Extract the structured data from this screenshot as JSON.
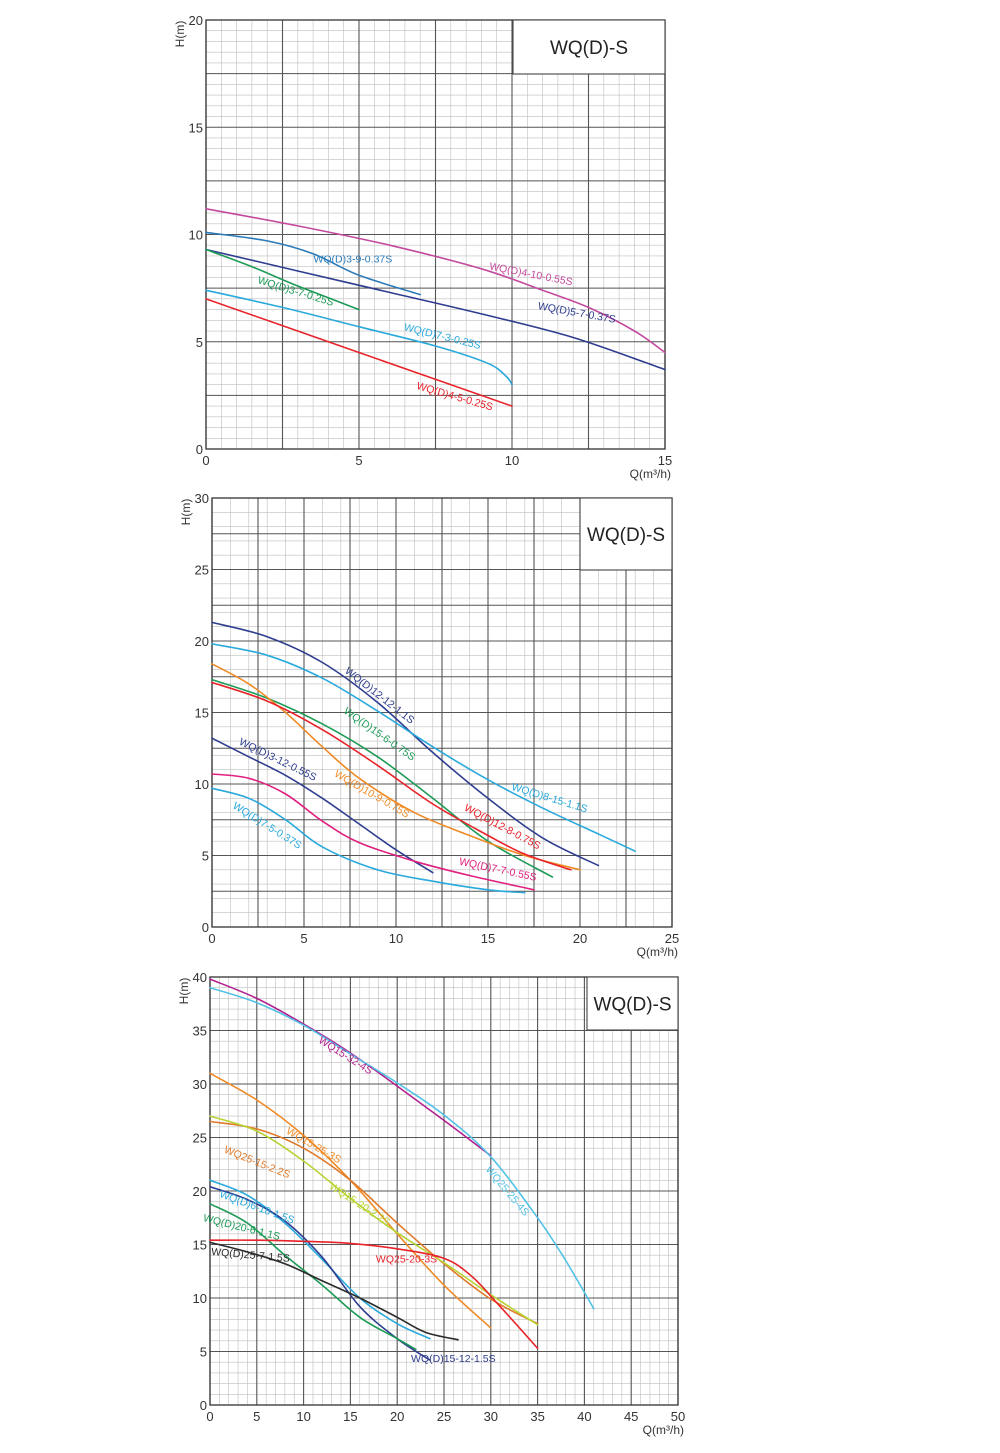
{
  "chart_data": [
    {
      "type": "line",
      "title": "WQ(D)-S",
      "xlabel": "Q(m³/h)",
      "ylabel": "H(m)",
      "xlim": [
        0,
        15
      ],
      "ylim": [
        0,
        20
      ],
      "xticks": [
        0,
        5,
        10,
        15
      ],
      "yticks": [
        0,
        5,
        10,
        15,
        20
      ],
      "grid": true,
      "series": [
        {
          "name": "WQ(D)4-10-0.55S",
          "color": "#c44a9e",
          "x": [
            0,
            3,
            6,
            9,
            11,
            12.5,
            14,
            15
          ],
          "y": [
            11.2,
            10.4,
            9.5,
            8.4,
            7.4,
            6.6,
            5.5,
            4.5
          ]
        },
        {
          "name": "WQ(D)5-7-0.37S",
          "color": "#2e3d8f",
          "x": [
            0,
            3,
            6,
            9,
            12,
            15
          ],
          "y": [
            9.3,
            8.3,
            7.3,
            6.3,
            5.2,
            3.7
          ]
        },
        {
          "name": "WQ(D)3-9-0.37S",
          "color": "#2a7ab8",
          "x": [
            0,
            2,
            3.5,
            5,
            7
          ],
          "y": [
            10.1,
            9.7,
            9.1,
            8.1,
            7.2
          ]
        },
        {
          "name": "WQ(D)3-7-0.25S",
          "color": "#1e9b57",
          "x": [
            0,
            1.5,
            3,
            5
          ],
          "y": [
            9.3,
            8.5,
            7.6,
            6.5
          ]
        },
        {
          "name": "WQ(D)7-3-0.25S",
          "color": "#29a9dc",
          "x": [
            0,
            2.5,
            5,
            7.5,
            9.2,
            9.8,
            10
          ],
          "y": [
            7.4,
            6.6,
            5.7,
            4.8,
            4.0,
            3.4,
            3.0
          ]
        },
        {
          "name": "WQ(D)4-5-0.25S",
          "color": "#e8232a",
          "x": [
            0,
            5,
            10
          ],
          "y": [
            7.0,
            4.5,
            2.0
          ]
        }
      ]
    },
    {
      "type": "line",
      "title": "WQ(D)-S",
      "xlabel": "Q(m³/h)",
      "ylabel": "H(m)",
      "xlim": [
        0,
        25
      ],
      "ylim": [
        0,
        30
      ],
      "xticks": [
        0,
        5,
        10,
        15,
        20,
        25
      ],
      "yticks": [
        0,
        5,
        10,
        15,
        20,
        25,
        30
      ],
      "grid": true,
      "series": [
        {
          "name": "WQ(D)12-12-1.1S",
          "color": "#2e3d8f",
          "x": [
            0,
            3,
            6,
            9,
            12,
            15,
            18,
            21
          ],
          "y": [
            21.3,
            20.3,
            18.5,
            15.7,
            12.2,
            9.0,
            6.2,
            4.3
          ]
        },
        {
          "name": "WQ(D)8-15-1.1S",
          "color": "#29a9dc",
          "x": [
            0,
            3,
            6,
            9,
            12,
            15,
            18,
            21,
            23
          ],
          "y": [
            19.8,
            19.0,
            17.4,
            15.1,
            12.6,
            10.3,
            8.3,
            6.5,
            5.3
          ]
        },
        {
          "name": "WQ(D)15-6-0.75S",
          "color": "#1e9b57",
          "x": [
            0,
            3,
            6,
            9,
            12,
            15,
            18.5
          ],
          "y": [
            17.3,
            16.0,
            14.2,
            11.9,
            9.0,
            6.0,
            3.5
          ]
        },
        {
          "name": "WQ(D)10-9-0.75S",
          "color": "#f08a24",
          "x": [
            0,
            2,
            4,
            6,
            8,
            11,
            14,
            17,
            20
          ],
          "y": [
            18.4,
            17.0,
            15.0,
            12.6,
            10.4,
            8.0,
            6.4,
            5.0,
            4.0
          ]
        },
        {
          "name": "WQ(D)12-8-0.75S",
          "color": "#e8232a",
          "x": [
            0,
            3,
            6,
            9,
            12,
            15,
            17,
            19.5
          ],
          "y": [
            17.1,
            15.8,
            13.8,
            11.3,
            8.6,
            6.4,
            5.1,
            4.0
          ]
        },
        {
          "name": "WQ(D)3-12-0.55S",
          "color": "#2e3d8f",
          "x": [
            0,
            2,
            4,
            6,
            8,
            10,
            12
          ],
          "y": [
            13.2,
            11.9,
            10.6,
            9.0,
            7.2,
            5.4,
            3.8
          ]
        },
        {
          "name": "WQ(D)7-7-0.55S",
          "color": "#e0207f",
          "x": [
            0,
            2,
            4,
            6,
            8,
            11,
            14,
            17.5
          ],
          "y": [
            10.7,
            10.4,
            9.3,
            7.4,
            5.9,
            4.6,
            3.6,
            2.6
          ]
        },
        {
          "name": "WQ(D)7-5-0.37S",
          "color": "#29a9dc",
          "x": [
            0,
            2,
            4,
            6,
            9,
            12,
            15,
            17
          ],
          "y": [
            9.7,
            9.0,
            7.5,
            5.6,
            4.0,
            3.2,
            2.6,
            2.4
          ]
        }
      ]
    },
    {
      "type": "line",
      "title": "WQ(D)-S",
      "xlabel": "Q(m³/h)",
      "ylabel": "H(m)",
      "xlim": [
        0,
        50
      ],
      "ylim": [
        0,
        40
      ],
      "xticks": [
        0,
        5,
        10,
        15,
        20,
        25,
        30,
        35,
        40,
        45,
        50
      ],
      "yticks": [
        0,
        5,
        10,
        15,
        20,
        25,
        30,
        35,
        40
      ],
      "grid": true,
      "series": [
        {
          "name": "WQ15-32-4S",
          "color": "#b3218f",
          "x": [
            0,
            5,
            10,
            15,
            20,
            25,
            30
          ],
          "y": [
            39.8,
            38.0,
            35.6,
            32.9,
            29.8,
            26.6,
            23.3
          ]
        },
        {
          "name": "WQ25-25-4S",
          "color": "#52c2e6",
          "x": [
            0,
            5,
            10,
            15,
            20,
            25,
            30,
            35,
            38,
            41
          ],
          "y": [
            39.0,
            37.6,
            35.5,
            32.8,
            30.1,
            27.1,
            23.2,
            17.5,
            13.5,
            9.0
          ]
        },
        {
          "name": "WQ15-25-3S",
          "color": "#f08a24",
          "x": [
            0,
            5,
            10,
            15,
            20,
            25,
            30
          ],
          "y": [
            31.0,
            28.5,
            25.2,
            21.0,
            16.0,
            11.2,
            7.2
          ]
        },
        {
          "name": "WQ25-15-2.2S",
          "color": "#e07a2a",
          "x": [
            0,
            5,
            10,
            15,
            20,
            25,
            30,
            35
          ],
          "y": [
            26.5,
            25.8,
            24.0,
            21.0,
            17.0,
            13.2,
            9.9,
            7.6
          ]
        },
        {
          "name": "WQ15-20-2.2S",
          "color": "#b7d433",
          "x": [
            0,
            5,
            10,
            15,
            20,
            25,
            30,
            35
          ],
          "y": [
            27.0,
            25.6,
            22.8,
            19.3,
            16.1,
            13.3,
            10.3,
            7.5
          ]
        },
        {
          "name": "WQ(D)6-18-1.5S",
          "color": "#29a9dc",
          "x": [
            0,
            4,
            8,
            12,
            16,
            20,
            23.5
          ],
          "y": [
            21.0,
            19.6,
            17.0,
            13.6,
            10.0,
            7.6,
            6.2
          ]
        },
        {
          "name": "WQ(D)15-12-1.5S",
          "color": "#2e3d8f",
          "x": [
            0,
            4,
            8,
            12,
            16,
            20,
            23.5
          ],
          "y": [
            20.4,
            19.2,
            17.2,
            13.8,
            9.2,
            6.2,
            4.2
          ]
        },
        {
          "name": "WQ(D)20-6-1.1S",
          "color": "#1e9b57",
          "x": [
            0,
            4,
            8,
            12,
            16,
            20,
            22
          ],
          "y": [
            18.8,
            17.0,
            14.0,
            11.2,
            8.2,
            6.2,
            5.2
          ]
        },
        {
          "name": "WQ25-20-3S",
          "color": "#e8232a",
          "x": [
            0,
            5,
            10,
            15,
            20,
            25,
            28,
            31,
            35
          ],
          "y": [
            15.4,
            15.4,
            15.3,
            15.1,
            14.6,
            13.7,
            12.0,
            9.2,
            5.3
          ]
        },
        {
          "name": "WQ(D)25-7-1.5S",
          "color": "#2b2b2b",
          "x": [
            0,
            4,
            8,
            12,
            16,
            20,
            23,
            26.5
          ],
          "y": [
            15.2,
            14.3,
            13.2,
            11.6,
            10.0,
            8.2,
            6.8,
            6.1
          ]
        }
      ]
    }
  ],
  "curve_labels": [
    [
      {
        "text": "WQ(D)4-10-0.55S",
        "x": 10.6,
        "y": 8.0,
        "angle": 11,
        "color": "#c44a9e"
      },
      {
        "text": "WQ(D)5-7-0.37S",
        "x": 12.1,
        "y": 6.2,
        "angle": 10,
        "color": "#2e3d8f"
      },
      {
        "text": "WQ(D)3-9-0.37S",
        "x": 4.8,
        "y": 8.7,
        "angle": 0,
        "color": "#2a7ab8"
      },
      {
        "text": "WQ(D)3-7-0.25S",
        "x": 2.9,
        "y": 7.2,
        "angle": 17,
        "color": "#1e9b57"
      },
      {
        "text": "WQ(D)7-3-0.25S",
        "x": 7.7,
        "y": 5.1,
        "angle": 14,
        "color": "#29a9dc"
      },
      {
        "text": "WQ(D)4-5-0.25S",
        "x": 8.1,
        "y": 2.3,
        "angle": 16,
        "color": "#e8232a"
      }
    ],
    [
      {
        "text": "WQ(D)12-12-1.1S",
        "x": 9.0,
        "y": 16.0,
        "angle": 38,
        "color": "#2e3d8f"
      },
      {
        "text": "WQ(D)8-15-1.1S",
        "x": 18.3,
        "y": 8.8,
        "angle": 17,
        "color": "#29a9dc"
      },
      {
        "text": "WQ(D)15-6-0.75S",
        "x": 9.0,
        "y": 13.3,
        "angle": 35,
        "color": "#1e9b57"
      },
      {
        "text": "WQ(D)10-9-0.75S",
        "x": 8.6,
        "y": 9.1,
        "angle": 30,
        "color": "#f08a24"
      },
      {
        "text": "WQ(D)12-8-0.75S",
        "x": 15.7,
        "y": 6.8,
        "angle": 28,
        "color": "#e8232a"
      },
      {
        "text": "WQ(D)3-12-0.55S",
        "x": 3.5,
        "y": 11.5,
        "angle": 26,
        "color": "#2e3d8f"
      },
      {
        "text": "WQ(D)7-7-0.55S",
        "x": 15.5,
        "y": 3.8,
        "angle": 12,
        "color": "#e0207f"
      },
      {
        "text": "WQ(D)7-5-0.37S",
        "x": 2.9,
        "y": 6.9,
        "angle": 32,
        "color": "#29a9dc"
      }
    ],
    [
      {
        "text": "WQ15-32-4S",
        "x": 14.3,
        "y": 32.4,
        "angle": 32,
        "color": "#b3218f"
      },
      {
        "text": "WQ25-25-4S",
        "x": 31.5,
        "y": 19.8,
        "angle": 50,
        "color": "#52c2e6"
      },
      {
        "text": "WQ15-25-3S",
        "x": 10.9,
        "y": 24.0,
        "angle": 30,
        "color": "#f08a24"
      },
      {
        "text": "WQ25-15-2.2S",
        "x": 4.9,
        "y": 22.4,
        "angle": 22,
        "color": "#e07a2a"
      },
      {
        "text": "WQ15-20-2.2S",
        "x": 15.8,
        "y": 18.5,
        "angle": 33,
        "color": "#b7d433"
      },
      {
        "text": "WQ(D)6-18-1.5S",
        "x": 4.9,
        "y": 18.2,
        "angle": 20,
        "color": "#29a9dc"
      },
      {
        "text": "WQ(D)15-12-1.5S",
        "x": 26.0,
        "y": 4.0,
        "angle": 0,
        "color": "#2e3d8f"
      },
      {
        "text": "WQ(D)20-6-1.1S",
        "x": 3.3,
        "y": 16.3,
        "angle": 14,
        "color": "#1e9b57"
      },
      {
        "text": "WQ25-20-3S",
        "x": 21.0,
        "y": 13.3,
        "angle": 0,
        "color": "#e8232a"
      },
      {
        "text": "WQ(D)25-7-1.5S",
        "x": 4.3,
        "y": 13.7,
        "angle": 5,
        "color": "#2b2b2b"
      }
    ]
  ]
}
